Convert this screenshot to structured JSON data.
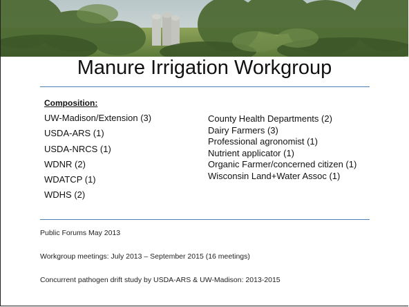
{
  "title": "Manure Irrigation Workgroup",
  "composition": {
    "heading": "Composition:",
    "left": [
      "UW-Madison/Extension (3)",
      "USDA-ARS (1)",
      "USDA-NRCS (1)",
      "WDNR (2)",
      "WDATCP (1)",
      "WDHS (2)"
    ],
    "right": [
      "County Health Departments (2)",
      "Dairy Farmers (3)",
      "Professional agronomist (1)",
      "Nutrient applicator (1)",
      "Organic Farmer/concerned citizen (1)",
      "Wisconsin Land+Water Assoc (1)"
    ]
  },
  "notes": [
    "Public Forums May 2013",
    "Workgroup meetings: July 2013 – September 2015 (16 meetings)",
    "Concurrent pathogen drift study by USDA-ARS & UW-Madison: 2013-2015"
  ]
}
